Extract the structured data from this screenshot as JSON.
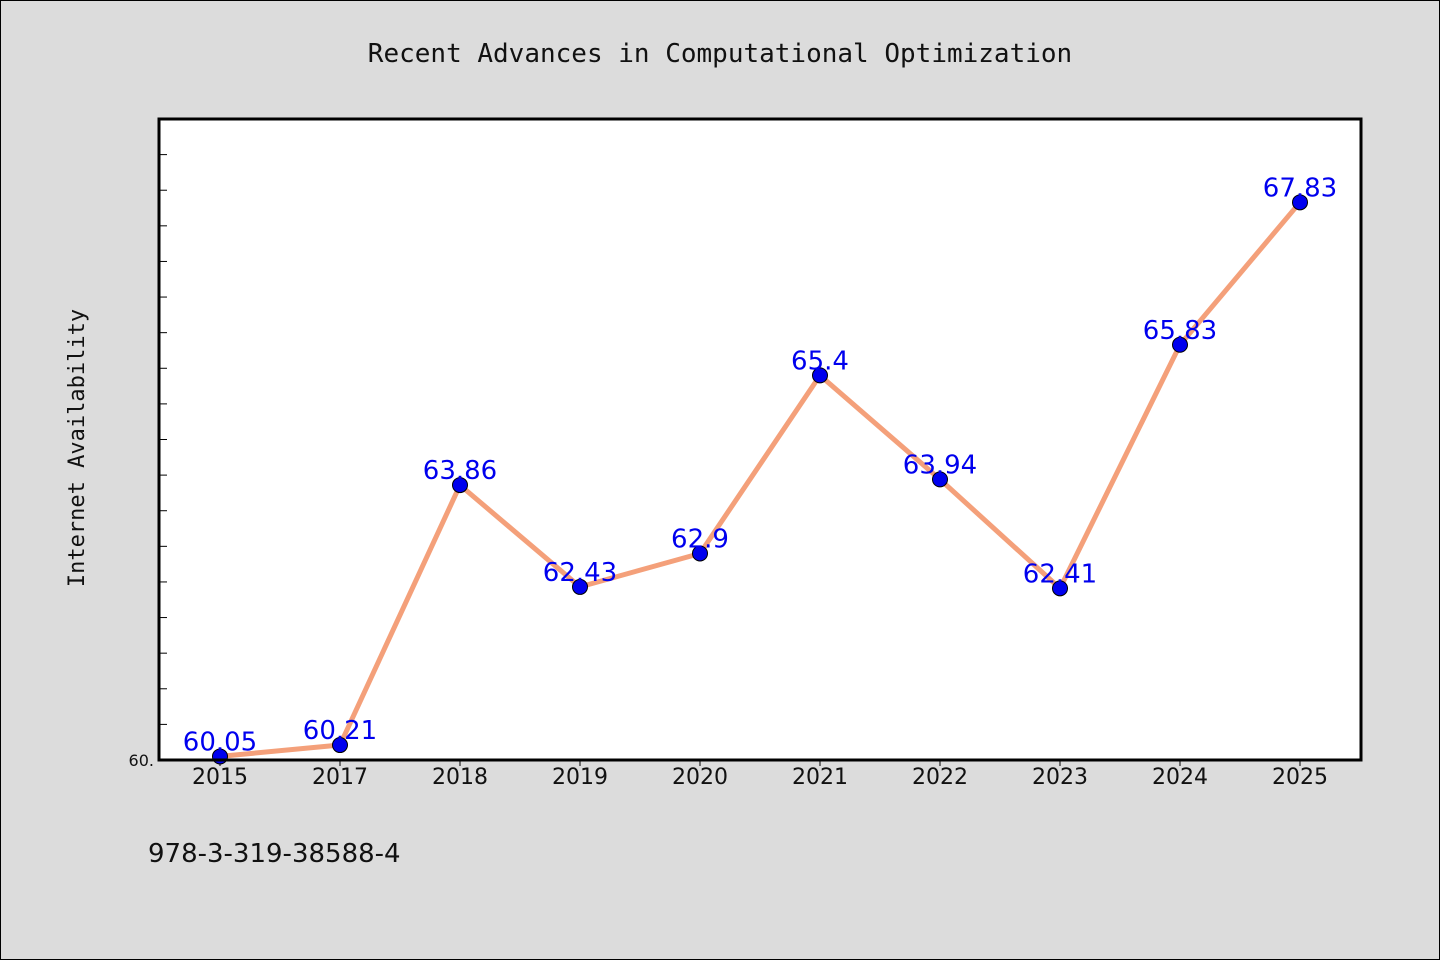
{
  "footer": {
    "isbn": "978-3-319-38588-4"
  },
  "chart_data": {
    "type": "line",
    "title": "Recent Advances in Computational Optimization",
    "xlabel": "",
    "ylabel": "Internet Availability",
    "categories": [
      "2015",
      "2017",
      "2018",
      "2019",
      "2020",
      "2021",
      "2022",
      "2023",
      "2024",
      "2025"
    ],
    "series": [
      {
        "values": [
          60.05,
          60.21,
          63.86,
          62.43,
          62.9,
          65.4,
          63.94,
          62.41,
          65.83,
          67.83
        ],
        "data_labels": [
          "60.05",
          "60.21",
          "63.86",
          "62.43",
          "62.9",
          "65.4",
          "63.94",
          "62.41",
          "65.83",
          "67.83"
        ]
      }
    ],
    "ylim": [
      60.0,
      69.0
    ],
    "y_tick_label": "60.",
    "grid": false,
    "legend": "none",
    "colors": {
      "line": "#f4a07a",
      "marker": "#0000ee",
      "labels": "#0000ee",
      "plot_background": "#ffffff",
      "figure_background": "#dcdcdc"
    }
  }
}
